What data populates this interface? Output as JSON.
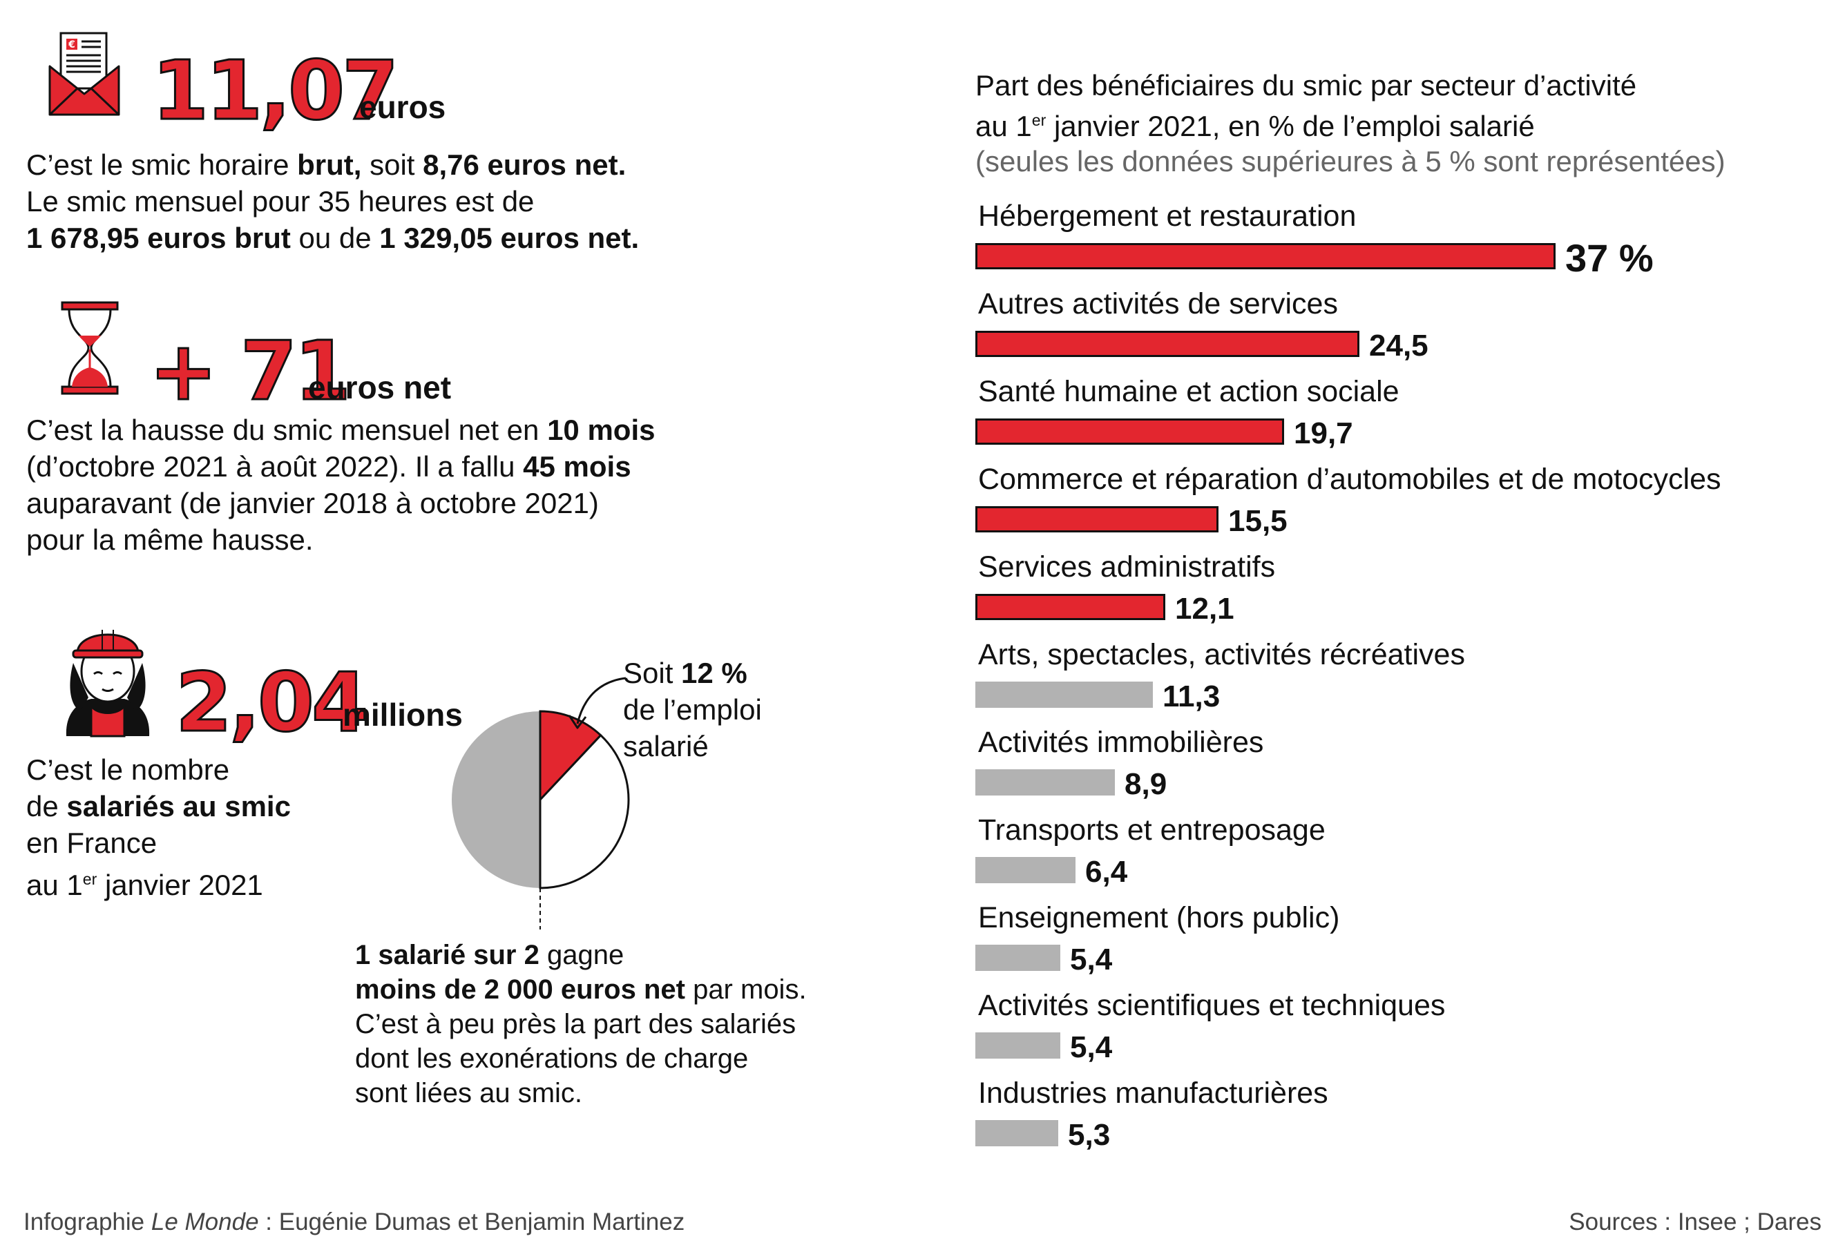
{
  "stat1": {
    "number": "11,07",
    "unit": "euros",
    "lines": [
      [
        "C’est le smic horaire ",
        "brut,",
        " soit ",
        "8,76 euros net."
      ],
      [
        "Le smic mensuel pour 35 heures est de"
      ],
      [
        "",
        "1 678,95 euros brut",
        " ou de ",
        "1 329,05 euros net."
      ]
    ]
  },
  "stat2": {
    "number": "+ 71",
    "unit": "euros net",
    "lines": [
      [
        "C’est la hausse du smic mensuel net en ",
        "10 mois"
      ],
      [
        "(d’octobre 2021 à août 2022). Il a fallu ",
        "45 mois"
      ],
      [
        "auparavant (de janvier 2018 à octobre 2021)"
      ],
      [
        "pour la même hausse."
      ]
    ]
  },
  "stat3": {
    "number": "2,04",
    "unit": "millions",
    "line1": "C’est le nombre",
    "line2_pre": "de ",
    "line2_bold": "salariés au smic",
    "line3": "en France",
    "line4_pre": "au 1",
    "line4_sup": "er",
    "line4_post": " janvier 2021"
  },
  "pie_note": {
    "line1_pre": "Soit ",
    "line1_bold": "12 %",
    "line2": "de l’emploi",
    "line3": "salarié"
  },
  "pie_data": {
    "red_share": 12,
    "grey_share": 50,
    "white_share": 38
  },
  "half_note": {
    "line1_bold": "1 salarié sur 2",
    "line1_post": " gagne",
    "line2_bold": "moins de 2 000 euros net",
    "line2_post": " par mois.",
    "line3": "C’est à peu près la part des salariés",
    "line4": "dont les exonérations de charge",
    "line5": "sont liées au smic."
  },
  "chart_header": {
    "title_line1": "Part des bénéficiaires du smic par secteur d’activité",
    "title_line2_pre": "au 1",
    "title_line2_sup": "er",
    "title_line2_post": " janvier 2021, en % de l’emploi salarié",
    "note": "(seules les données supérieures à 5 % sont représentées)"
  },
  "chart_data": {
    "type": "bar",
    "orientation": "horizontal",
    "categories": [
      "Hébergement et restauration",
      "Autres activités de services",
      "Santé humaine et action sociale",
      "Commerce et réparation d’automobiles et de motocycles",
      "Services administratifs",
      "Arts, spectacles, activités récréatives",
      "Activités immobilières",
      "Transports et entreposage",
      "Enseignement (hors public)",
      "Activités scientifiques et techniques",
      "Industries manufacturières"
    ],
    "values": [
      37,
      24.5,
      19.7,
      15.5,
      12.1,
      11.3,
      8.9,
      6.4,
      5.4,
      5.4,
      5.3
    ],
    "value_labels": [
      "37 %",
      "24,5",
      "19,7",
      "15,5",
      "12,1",
      "11,3",
      "8,9",
      "6,4",
      "5,4",
      "5,4",
      "5,3"
    ],
    "colors": [
      "#e3262f",
      "#e3262f",
      "#e3262f",
      "#e3262f",
      "#e3262f",
      "#b2b2b2",
      "#b2b2b2",
      "#b2b2b2",
      "#b2b2b2",
      "#b2b2b2",
      "#b2b2b2"
    ]
  },
  "footer": {
    "credit_pre": "Infographie ",
    "credit_italic": "Le Monde",
    "credit_post": " : Eugénie Dumas et Benjamin Martinez",
    "sources": "Sources : Insee ; Dares"
  }
}
